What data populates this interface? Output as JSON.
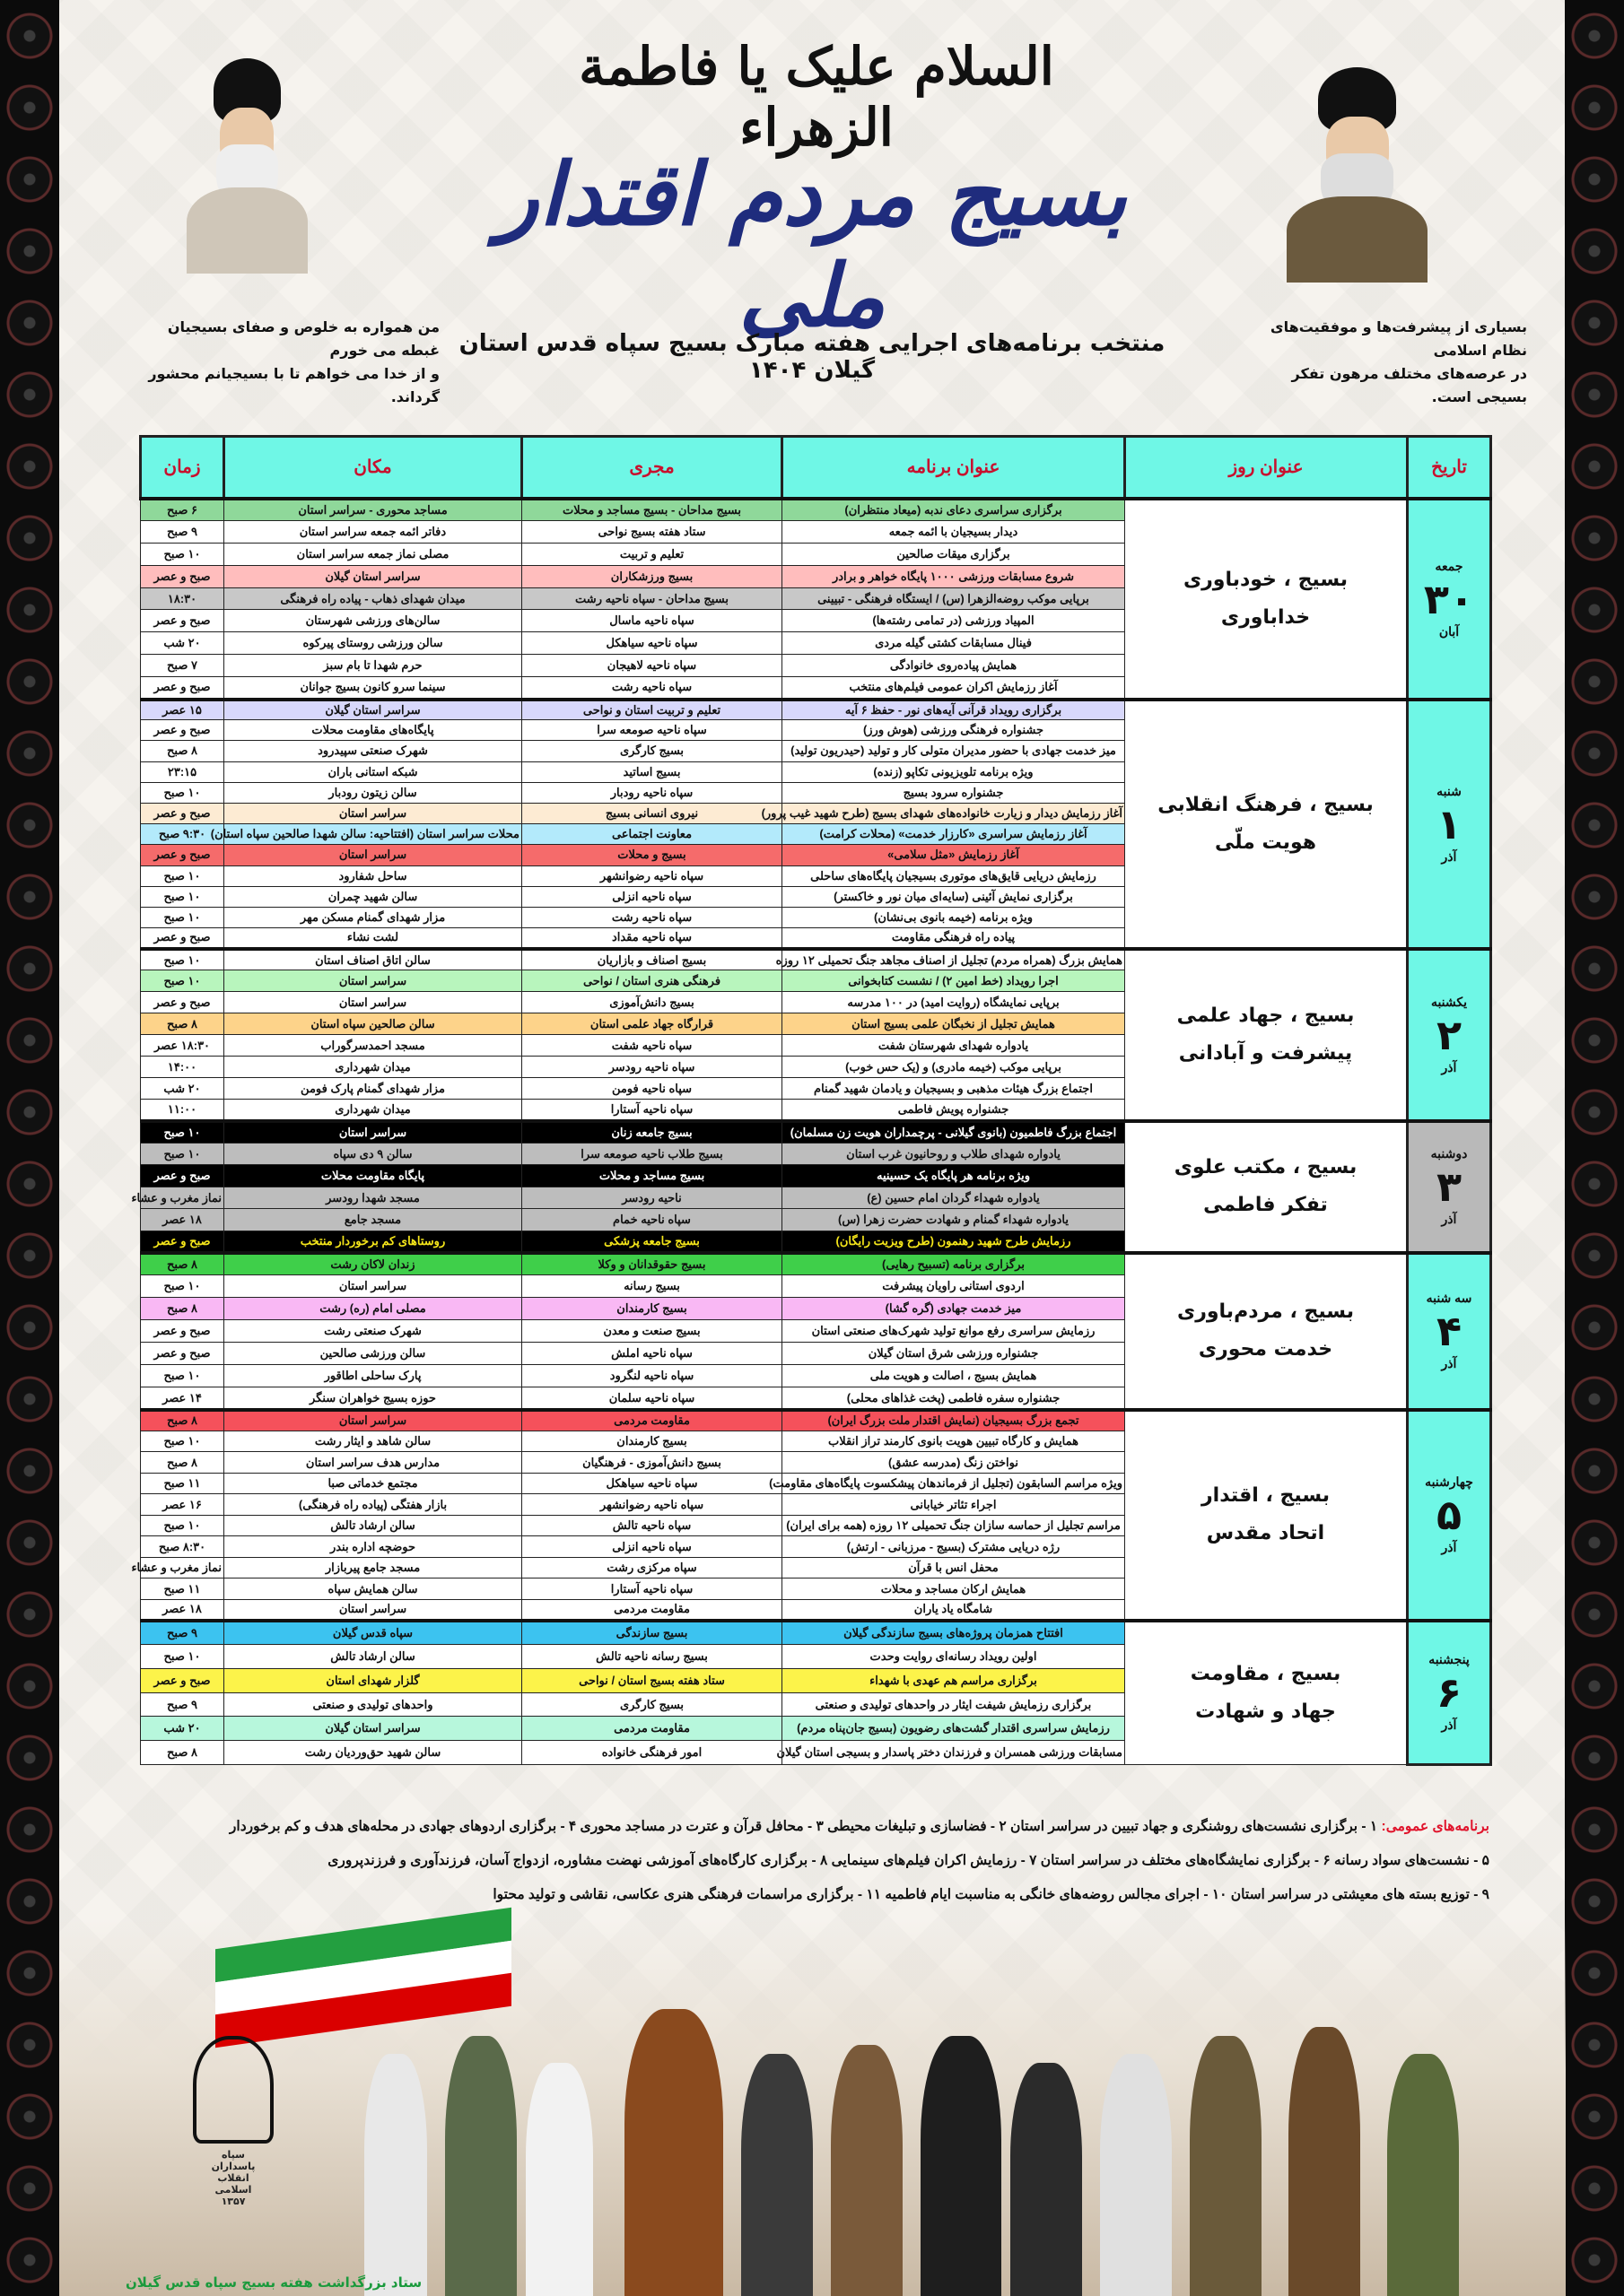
{
  "header": {
    "calligraphy": "السلام علیک یا فاطمة الزهراء",
    "main_title": "بسیج مردم اقتدار ملی",
    "quote_right": [
      "بسیاری از پیشرفت‌ها و موفقیت‌های نظام اسلامی",
      "در عرصه‌های مختلف مرهون تفکر بسیجی است."
    ],
    "quote_left": [
      "من همواره به خلوص و صفای بسیجیان غبطه می خورم",
      "و از خدا می خواهم تا با بسیجیانم محشور گرداند."
    ],
    "program_title": "منتخب برنامه‌های اجرایی هفته مبارک بسیج سپاه قدس استان گیلان ۱۴۰۴"
  },
  "colors": {
    "header_bg": "#6ff7e6",
    "header_text": "#c8102e",
    "title_blue": "#1f2c7d",
    "general_label": "#e0142c",
    "caption": "#1a9a3c"
  },
  "table": {
    "columns": {
      "date": "تاریخ",
      "day_title": "عنوان روز",
      "program": "عنوان برنامه",
      "executor": "مجری",
      "location": "مکان",
      "time": "زمان"
    },
    "days": [
      {
        "weekday": "جمعه",
        "day": "۳۰",
        "month": "آبان",
        "title": [
          "بسیج ، خودباوری",
          "خداباوری"
        ],
        "date_bg": "#6ff7e6",
        "rows": [
          {
            "program": "برگزاری سراسری دعای ندبه (میعاد منتظران)",
            "executor": "بسیج مداحان - بسیج مساجد و محلات",
            "location": "مساجد محوری - سراسر استان",
            "time": "۶ صبح",
            "bg": "#8fd89a"
          },
          {
            "program": "دیدار بسیجیان با ائمه جمعه",
            "executor": "ستاد هفته بسیج نواحی",
            "location": "دفاتر ائمه جمعه سراسر استان",
            "time": "۹ صبح"
          },
          {
            "program": "برگزاری میقات صالحین",
            "executor": "تعلیم و تربیت",
            "location": "مصلی نماز جمعه سراسر استان",
            "time": "۱۰ صبح"
          },
          {
            "program": "شروع مسابقات ورزشی ۱۰۰۰ پایگاه خواهر و برادر",
            "executor": "بسیج ورزشکاران",
            "location": "سراسر استان گیلان",
            "time": "صبح و عصر",
            "bg": "#ffbdbd"
          },
          {
            "program": "برپایی موکب روضه‌الزهرا (س) / ایستگاه فرهنگی - تبیینی",
            "executor": "بسیج مداحان - سپاه ناحیه رشت",
            "location": "میدان شهدای ذهاب - پیاده راه فرهنگی",
            "time": "۱۸:۳۰",
            "bg": "#c8c8c8"
          },
          {
            "program": "المپیاد ورزشی (در تمامی رشته‌ها)",
            "executor": "سپاه ناحیه ماسال",
            "location": "سالن‌های ورزشی شهرستان",
            "time": "صبح و عصر"
          },
          {
            "program": "فینال مسابقات کشتی گیله مردی",
            "executor": "سپاه ناحیه سیاهکل",
            "location": "سالن ورزشی روستای پیرکوه",
            "time": "۲۰ شب"
          },
          {
            "program": "همایش پیاده‌روی خانوادگی",
            "executor": "سپاه ناحیه لاهیجان",
            "location": "حرم شهدا تا بام سبز",
            "time": "۷ صبح"
          },
          {
            "program": "آغاز رزمایش اکران عمومی فیلم‌های منتخب",
            "executor": "سپاه ناحیه رشت",
            "location": "سینما سرو کانون بسیج جوانان",
            "time": "صبح و عصر"
          }
        ]
      },
      {
        "weekday": "شنبه",
        "day": "۱",
        "month": "آذر",
        "title": [
          "بسیج ، فرهنگ انقلابی",
          "هویت ملّی"
        ],
        "date_bg": "#6ff7e6",
        "rows": [
          {
            "program": "برگزاری رویداد قرآنی آیه‌های نور - حفظ ۶ آیه",
            "executor": "تعلیم و تربیت استان و نواحی",
            "location": "سراسر استان گیلان",
            "time": "۱۵ عصر",
            "bg": "#d8d8fb"
          },
          {
            "program": "جشنواره فرهنگی ورزشی (هوش ورز)",
            "executor": "سپاه ناحیه صومعه سرا",
            "location": "پایگاه‌های مقاومت محلات",
            "time": "صبح و عصر"
          },
          {
            "program": "میز خدمت جهادی با حضور مدیران متولی کار و تولید (حیدریون تولید)",
            "executor": "بسیج کارگری",
            "location": "شهرک صنعتی سپیدرود",
            "time": "۸ صبح"
          },
          {
            "program": "ویژه برنامه تلویزیونی تکاپو (زنده)",
            "executor": "بسیج اساتید",
            "location": "شبکه استانی باران",
            "time": "۲۳:۱۵"
          },
          {
            "program": "جشنواره سرود بسیج",
            "executor": "سپاه ناحیه رودبار",
            "location": "سالن زیتون رودبار",
            "time": "۱۰ صبح"
          },
          {
            "program": "آغاز رزمایش دیدار و زیارت خانواده‌های شهدای بسیج (طرح شهید غیب پرور)",
            "executor": "نیروی انسانی بسیج",
            "location": "سراسر استان",
            "time": "صبح و عصر",
            "bg": "#fdebd3"
          },
          {
            "program": "آغاز رزمایش سراسری «کارزار خدمت» (محلات کرامت)",
            "executor": "معاونت اجتماعی",
            "location": "محلات سراسر استان (افتتاحیه: سالن شهدا صالحین سپاه استان)",
            "time": "۹:۳۰ صبح",
            "bg": "#b3eafb"
          },
          {
            "program": "آغاز رزمایش «مثل سلامی»",
            "executor": "بسیج و محلات",
            "location": "سراسر استان",
            "time": "صبح و عصر",
            "bg": "#f56b6b"
          },
          {
            "program": "رزمایش دریایی قایق‌های موتوری بسیجیان پایگاه‌های ساحلی",
            "executor": "سپاه ناحیه رضوانشهر",
            "location": "ساحل شفارود",
            "time": "۱۰ صبح"
          },
          {
            "program": "برگزاری نمایش آئینی (سایه‌ای میان نور و خاکستر)",
            "executor": "سپاه ناحیه انزلی",
            "location": "سالن شهید چمران",
            "time": "۱۰ صبح"
          },
          {
            "program": "ویژه برنامه (خیمه بانوی بی‌نشان)",
            "executor": "سپاه ناحیه رشت",
            "location": "مزار شهدای گمنام مسکن مهر",
            "time": "۱۰ صبح"
          },
          {
            "program": "پیاده راه فرهنگی مقاومت",
            "executor": "سپاه ناحیه مقداد",
            "location": "لشت نشاء",
            "time": "صبح و عصر"
          }
        ]
      },
      {
        "weekday": "یکشنبه",
        "day": "۲",
        "month": "آذر",
        "title": [
          "بسیج ، جهاد علمی",
          "پیشرفت و آبادانی"
        ],
        "date_bg": "#6ff7e6",
        "rows": [
          {
            "program": "همایش بزرگ (همراه مردم) تجلیل از اصناف مجاهد جنگ تحمیلی ۱۲ روزه",
            "executor": "بسیج اصناف و بازاریان",
            "location": "سالن اتاق اصناف استان",
            "time": "۱۰ صبح"
          },
          {
            "program": "اجرا رویداد (خط امین ۲) / نشست کتابخوانی",
            "executor": "فرهنگی هنری استان / نواحی",
            "location": "سراسر استان",
            "time": "۱۰ صبح",
            "bg": "#b8f5bd"
          },
          {
            "program": "برپایی نمایشگاه (روایت امید) در ۱۰۰ مدرسه",
            "executor": "بسیج دانش‌آموزی",
            "location": "سراسر استان",
            "time": "صبح و عصر"
          },
          {
            "program": "همایش تجلیل از نخبگان علمی بسیج استان",
            "executor": "قرارگاه جهاد علمی استان",
            "location": "سالن صالحین سپاه استان",
            "time": "۸ صبح",
            "bg": "#fdd38a"
          },
          {
            "program": "یادواره شهدای شهرستان شفت",
            "executor": "سپاه ناحیه شفت",
            "location": "مسجد احمدسرگوراب",
            "time": "۱۸:۳۰ عصر"
          },
          {
            "program": "برپایی موکب (خیمه مادری) و (یک حس خوب)",
            "executor": "سپاه ناحیه رودسر",
            "location": "میدان شهرداری",
            "time": "۱۴:۰۰"
          },
          {
            "program": "اجتماع بزرگ هیئات مذهبی و بسیجیان و یادمان شهید گمنام",
            "executor": "سپاه ناحیه فومن",
            "location": "مزار شهدای گمنام پارک فومن",
            "time": "۲۰ شب"
          },
          {
            "program": "جشنواره پویش فاطمی",
            "executor": "سپاه ناحیه آستارا",
            "location": "میدان شهرداری",
            "time": "۱۱:۰۰"
          }
        ]
      },
      {
        "weekday": "دوشنبه",
        "day": "۳",
        "month": "آذر",
        "title": [
          "بسیج ، مکتب علوی",
          "تفکر فاطمی"
        ],
        "date_bg": "#b9b9b9",
        "rows": [
          {
            "program": "اجتماع بزرگ فاطمیون (بانوی گیلانی - پرچمداران هویت زن مسلمان)",
            "executor": "بسیج جامعه زنان",
            "location": "سراسر استان",
            "time": "۱۰ صبح",
            "bg": "#000000",
            "fg": "#ffffff"
          },
          {
            "program": "یادواره شهدای طلاب و روحانیون غرب استان",
            "executor": "بسیج طلاب ناحیه صومعه سرا",
            "location": "سالن ۹ دی سپاه",
            "time": "۱۰ صبح",
            "bg": "#bdbdbd"
          },
          {
            "program": "ویژه برنامه هر پایگاه یک حسینیه",
            "executor": "بسیج مساجد و محلات",
            "location": "پایگاه مقاومت محلات",
            "time": "صبح و عصر",
            "bg": "#000000",
            "fg": "#ffffff"
          },
          {
            "program": "یادواره شهداء گردان امام حسین (ع)",
            "executor": "ناحیه رودسر",
            "location": "مسجد شهدا رودسر",
            "time": "نماز مغرب و عشاء",
            "bg": "#bdbdbd"
          },
          {
            "program": "یادواره شهداء گمنام و شهادت حضرت زهرا (س)",
            "executor": "سپاه ناحیه خمام",
            "location": "مسجد جامع",
            "time": "۱۸ عصر",
            "bg": "#bdbdbd"
          },
          {
            "program": "رزمایش طرح شهید رهنمون (طرح ویزیت رایگان)",
            "executor": "بسیج جامعه پزشکی",
            "location": "روستاهای کم برخوردار منتخب",
            "time": "صبح و عصر",
            "bg": "#000000",
            "fg": "#f5e61a"
          }
        ]
      },
      {
        "weekday": "سه شنبه",
        "day": "۴",
        "month": "آذر",
        "title": [
          "بسیج ، مردم‌باوری",
          "خدمت محوری"
        ],
        "date_bg": "#6ff7e6",
        "rows": [
          {
            "program": "برگزاری برنامه (تسبیح رهایی)",
            "executor": "بسیج حقوقدانان و وکلا",
            "location": "زندان لاکان رشت",
            "time": "۸ صبح",
            "bg": "#3fcf4a"
          },
          {
            "program": "اردوی استانی راویان پیشرفت",
            "executor": "بسیج رسانه",
            "location": "سراسر استان",
            "time": "۱۰ صبح"
          },
          {
            "program": "میز خدمت جهادی (گره گشا)",
            "executor": "بسیج کارمندان",
            "location": "مصلی امام (ره) رشت",
            "time": "۸ صبح",
            "bg": "#f9b8f4"
          },
          {
            "program": "رزمایش سراسری رفع موانع تولید شهرک‌های صنعتی استان",
            "executor": "بسیج صنعت و معدن",
            "location": "شهرک صنعتی رشت",
            "time": "صبح و عصر"
          },
          {
            "program": "جشنواره ورزشی شرق استان گیلان",
            "executor": "سپاه ناحیه املش",
            "location": "سالن ورزشی صالحین",
            "time": "صبح و عصر"
          },
          {
            "program": "همایش بسیج ، اصالت و هویت ملی",
            "executor": "سپاه ناحیه لنگرود",
            "location": "پارک ساحلی اطاقور",
            "time": "۱۰ صبح"
          },
          {
            "program": "جشنواره سفره فاطمی (پخت غذاهای محلی)",
            "executor": "سپاه ناحیه سلمان",
            "location": "حوزه بسیج خواهران سنگر",
            "time": "۱۴ عصر"
          }
        ]
      },
      {
        "weekday": "چهارشنبه",
        "day": "۵",
        "month": "آذر",
        "title": [
          "بسیج ، اقتدار",
          "اتحاد مقدس"
        ],
        "date_bg": "#6ff7e6",
        "rows": [
          {
            "program": "تجمع بزرگ بسیجیان (نمایش اقتدار ملت بزرگ ایران)",
            "executor": "مقاومت مردمی",
            "location": "سراسر استان",
            "time": "۸ صبح",
            "bg": "#f5515b"
          },
          {
            "program": "همایش و کارگاه تبیین هویت بانوی کارمند تراز انقلاب",
            "executor": "بسیج کارمندان",
            "location": "سالن شاهد و ایثار رشت",
            "time": "۱۰ صبح"
          },
          {
            "program": "نواختن زنگ (مدرسه عشق)",
            "executor": "بسیج دانش‌آموزی - فرهنگیان",
            "location": "مدارس هدف سراسر استان",
            "time": "۸ صبح"
          },
          {
            "program": "ویژه مراسم السابقون (تجلیل از فرماندهان پیشکسوت پایگاه‌های مقاومت)",
            "executor": "سپاه ناحیه سیاهکل",
            "location": "مجتمع خدماتی صبا",
            "time": "۱۱ صبح"
          },
          {
            "program": "اجراء تئاتر خیابانی",
            "executor": "سپاه ناحیه رضوانشهر",
            "location": "بازار هفتگی (پیاده راه فرهنگی)",
            "time": "۱۶ عصر"
          },
          {
            "program": "مراسم تجلیل از حماسه سازان جنگ تحمیلی ۱۲ روزه (همه برای ایران)",
            "executor": "سپاه ناحیه تالش",
            "location": "سالن ارشاد تالش",
            "time": "۱۰ صبح"
          },
          {
            "program": "رژه دریایی مشترک (بسیج - مرزبانی - ارتش)",
            "executor": "سپاه ناحیه انزلی",
            "location": "حوضچه اداره بندر",
            "time": "۸:۳۰ صبح"
          },
          {
            "program": "محفل انس با قرآن",
            "executor": "سپاه مرکزی رشت",
            "location": "مسجد جامع پیربازار",
            "time": "نماز مغرب و عشاء"
          },
          {
            "program": "همایش ارکان مساجد و محلات",
            "executor": "سپاه ناحیه آستارا",
            "location": "سالن همایش سپاه",
            "time": "۱۱ صبح"
          },
          {
            "program": "شامگاه یاد یاران",
            "executor": "مقاومت مردمی",
            "location": "سراسر استان",
            "time": "۱۸ عصر"
          }
        ]
      },
      {
        "weekday": "پنجشنبه",
        "day": "۶",
        "month": "آذر",
        "title": [
          "بسیج ، مقاومت",
          "جهاد و شهادت"
        ],
        "date_bg": "#6ff7e6",
        "rows": [
          {
            "program": "افتتاح همزمان پروژه‌های بسیج سازندگی گیلان",
            "executor": "بسیج سازندگی",
            "location": "سپاه قدس گیلان",
            "time": "۹ صبح",
            "bg": "#3cc3f0"
          },
          {
            "program": "اولین رویداد رسانه‌ای روایت وحدت",
            "executor": "بسیج رسانه ناحیه تالش",
            "location": "سالن ارشاد تالش",
            "time": "۱۰ صبح"
          },
          {
            "program": "برگزاری مراسم هم عهدی با شهداء",
            "executor": "ستاد هفته بسیج استان / نواحی",
            "location": "گلزار شهدای استان",
            "time": "صبح و عصر",
            "bg": "#fcf34a"
          },
          {
            "program": "برگزاری رزمایش شیفت ایثار در واحدهای تولیدی و صنعتی",
            "executor": "بسیج کارگری",
            "location": "واحدهای تولیدی و صنعتی",
            "time": "۹ صبح"
          },
          {
            "program": "رزمایش سراسری اقتدار گشت‌های رضویون (بسیج جان‌پناه مردم)",
            "executor": "مقاومت مردمی",
            "location": "سراسر استان گیلان",
            "time": "۲۰ شب",
            "bg": "#b7f7dc"
          },
          {
            "program": "مسابقات ورزشی همسران و فرزندان دختر پاسدار و بسیجی استان گیلان",
            "executor": "امور فرهنگی خانواده",
            "location": "سالن شهید حق‌وردیان رشت",
            "time": "۸ صبح"
          }
        ]
      }
    ]
  },
  "general_programs": {
    "label": "برنامه‌های عمومی:",
    "lines": [
      "۱ - برگزاری نشست‌های روشنگری و جهاد تبیین در سراسر استان ۲ - فضاسازی و تبلیغات محیطی ۳ - محافل قرآن و عترت در مساجد محوری ۴ - برگزاری اردوهای جهادی در محله‌های هدف و کم برخوردار",
      "۵ - نشست‌های سواد رسانه ۶ - برگزاری نمایشگاه‌های مختلف در سراسر استان ۷ - رزمایش اکران فیلم‌های سینمایی ۸ - برگزاری کارگاه‌های آموزشی نهضت مشاوره، ازدواج آسان، فرزندآوری و فرزندپروری",
      "۹ - توزیع بسته های معیشتی در سراسر استان ۱۰ - اجرای مجالس روضه‌های خانگی به مناسبت ایام فاطمیه ۱۱ - برگزاری مراسمات فرهنگی هنری عکاسی، نقاشی و تولید محتوا"
    ]
  },
  "logo": {
    "text": [
      "سپاه",
      "پاسداران",
      "انقلاب",
      "اسلامی",
      "۱۳۵۷"
    ]
  },
  "footer_caption": "ستاد بزرگداشت هفته بسیج سپاه قدس گیلان"
}
